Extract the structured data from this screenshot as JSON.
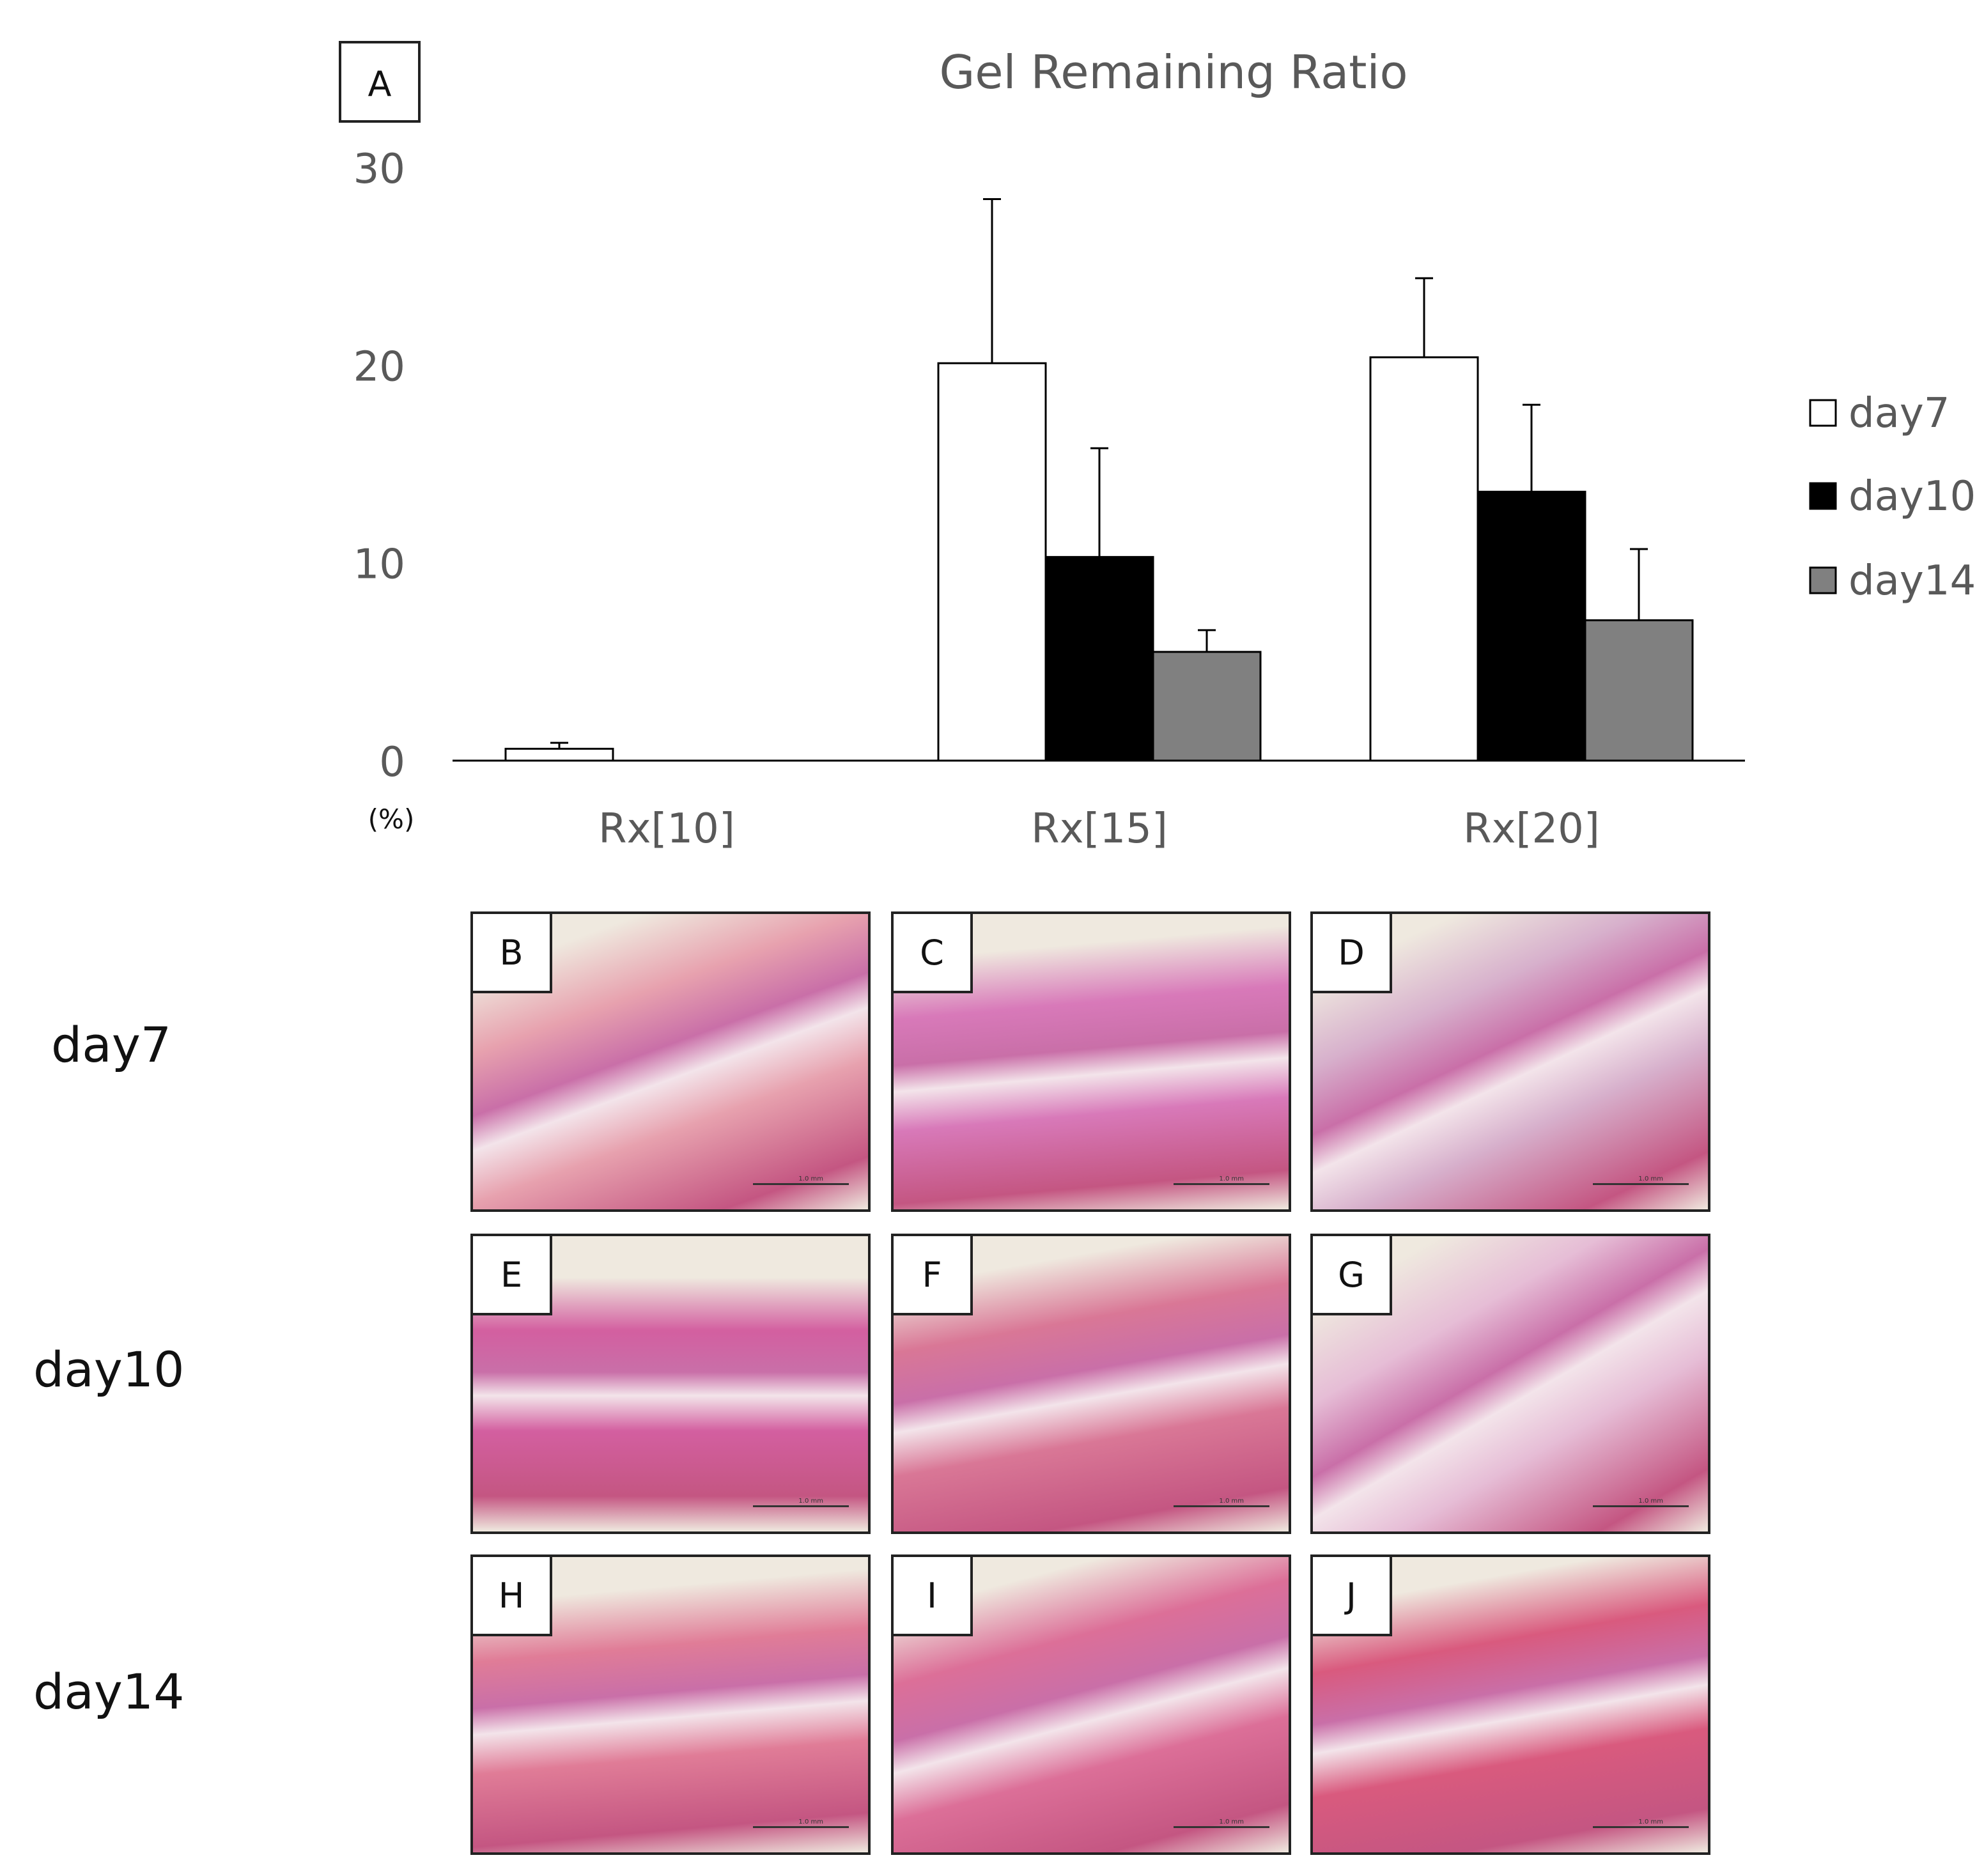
{
  "chart_data": {
    "type": "bar",
    "title": "Gel Remaining Ratio",
    "panel_label": "A",
    "categories": [
      "Rx[10]",
      "Rx[15]",
      "Rx[20]"
    ],
    "ylabel": "(%)",
    "ylim": [
      0,
      30
    ],
    "yticks": [
      0,
      10,
      20,
      30
    ],
    "legend_position": "right",
    "series": [
      {
        "name": "day7",
        "color": "#ffffff",
        "values": [
          0.6,
          20.1,
          20.4
        ],
        "errors": [
          0.3,
          8.3,
          4.0
        ]
      },
      {
        "name": "day10",
        "color": "#000000",
        "values": [
          0,
          10.3,
          13.6
        ],
        "errors": [
          0,
          5.5,
          4.4
        ]
      },
      {
        "name": "day14",
        "color": "#808080",
        "values": [
          0,
          5.5,
          7.1
        ],
        "errors": [
          0,
          1.1,
          3.6
        ]
      }
    ]
  },
  "histology": {
    "row_labels": [
      "day7",
      "day10",
      "day14"
    ],
    "panels": [
      {
        "letter": "B",
        "scale": "1.0 mm",
        "tone": "#e7a1ae"
      },
      {
        "letter": "C",
        "scale": "1.0 mm",
        "tone": "#d879b9"
      },
      {
        "letter": "D",
        "scale": "1.0 mm",
        "tone": "#d7b0cc"
      },
      {
        "letter": "E",
        "scale": "1.0 mm",
        "tone": "#d35fa0"
      },
      {
        "letter": "F",
        "scale": "1.0 mm",
        "tone": "#d97796"
      },
      {
        "letter": "G",
        "scale": "1.0 mm",
        "tone": "#e6bdd6"
      },
      {
        "letter": "H",
        "scale": "1.0 mm",
        "tone": "#e07c97"
      },
      {
        "letter": "I",
        "scale": "1.0 mm",
        "tone": "#dc6f98"
      },
      {
        "letter": "J",
        "scale": "1.0 mm",
        "tone": "#d95a7e"
      }
    ]
  }
}
